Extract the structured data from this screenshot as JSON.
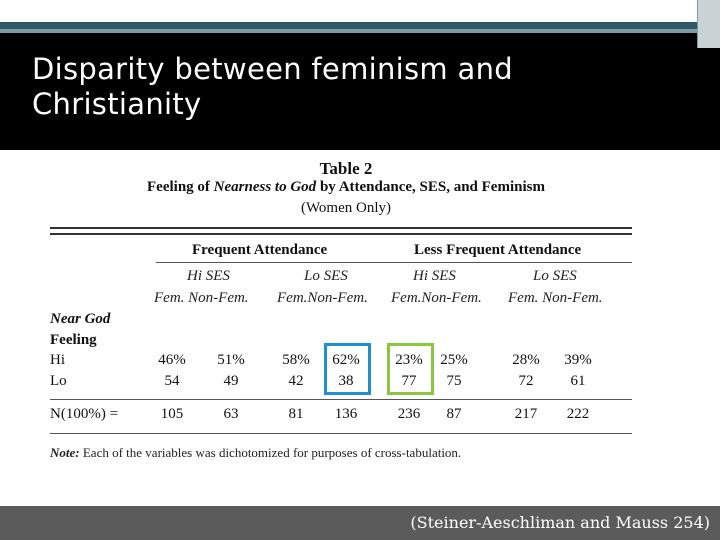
{
  "slide": {
    "title": "Disparity between feminism and Christianity",
    "citation": "(Steiner-Aeschliman and Mauss 254)",
    "colors": {
      "header": "#000000",
      "stripe": "#2f5964",
      "footer": "#5b5b5b",
      "highlight_blue": "#1f8fcf",
      "highlight_green": "#8cc63f"
    }
  },
  "table": {
    "number": "Table 2",
    "title_prefix": "Feeling of ",
    "title_em": "Nearness to God",
    "title_suffix": " by Attendance, SES, and Feminism",
    "subtitle": "(Women Only)",
    "groups": [
      "Frequent Attendance",
      "Less Frequent Attendance"
    ],
    "ses": [
      "Hi SES",
      "Lo SES",
      "Hi SES",
      "Lo SES"
    ],
    "cols": [
      "Fem. Non-Fem.",
      "Fem.Non-Fem.",
      "Fem.Non-Fem.",
      "Fem. Non-Fem."
    ],
    "row_header_1": "Near God",
    "row_header_2": "Feeling",
    "rows": [
      {
        "label": "Hi",
        "values": [
          "46%",
          "51%",
          "58%",
          "62%",
          "23%",
          "25%",
          "28%",
          "39%"
        ]
      },
      {
        "label": "Lo",
        "values": [
          "54",
          "49",
          "42",
          "38",
          "77",
          "75",
          "72",
          "61"
        ]
      }
    ],
    "n_row": {
      "label": "N(100%) =",
      "values": [
        "105",
        "63",
        "81",
        "136",
        "236",
        "87",
        "217",
        "222"
      ]
    },
    "note_label": "Note:",
    "note_text": " Each of the variables was dichotomized for purposes of cross-tabulation."
  }
}
